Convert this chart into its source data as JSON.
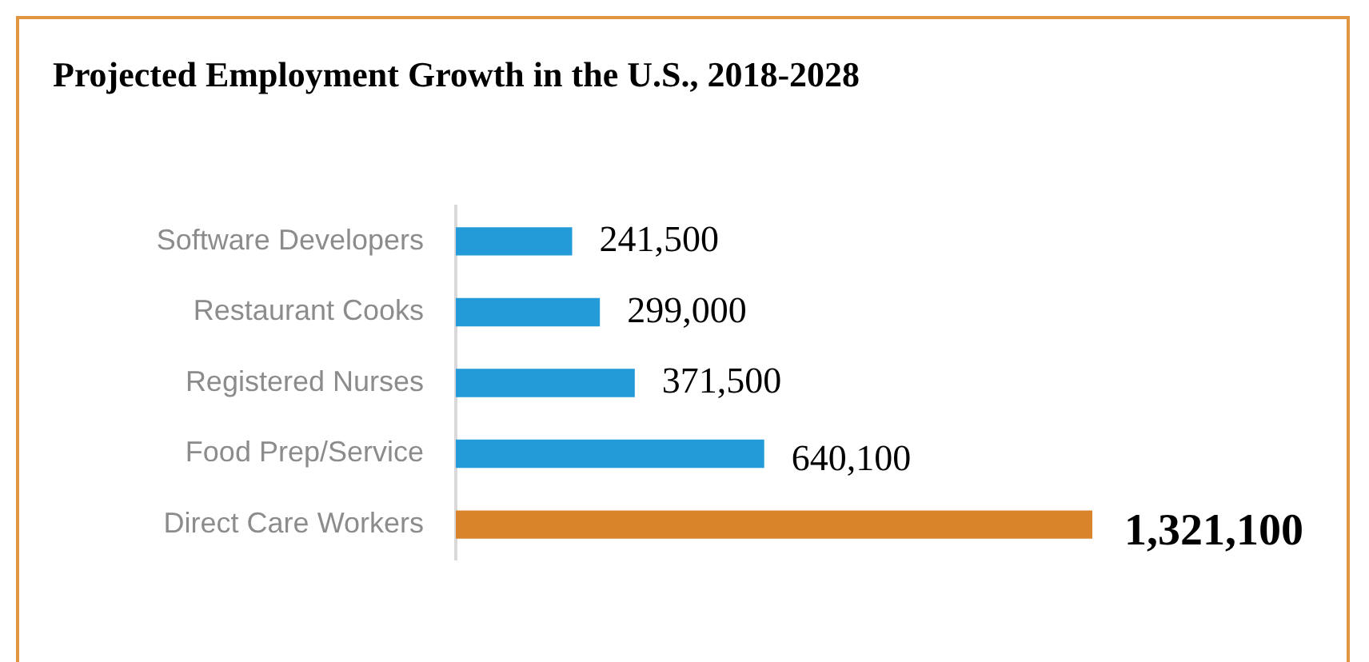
{
  "chart_data": {
    "type": "bar",
    "orientation": "horizontal",
    "title": "Projected Employment Growth in the U.S., 2018-2028",
    "categories": [
      "Software Developers",
      "Restaurant Cooks",
      "Registered Nurses",
      "Food Prep/Service",
      "Direct Care Workers"
    ],
    "values": [
      241500,
      299000,
      371500,
      640100,
      1321100
    ],
    "colors": [
      "#229bd8",
      "#229bd8",
      "#229bd8",
      "#229bd8",
      "#d9832b"
    ],
    "value_labels": [
      "241,500",
      "299,000",
      "371,500",
      "640,100",
      "1,321,100"
    ],
    "grid": false,
    "legend": false
  }
}
